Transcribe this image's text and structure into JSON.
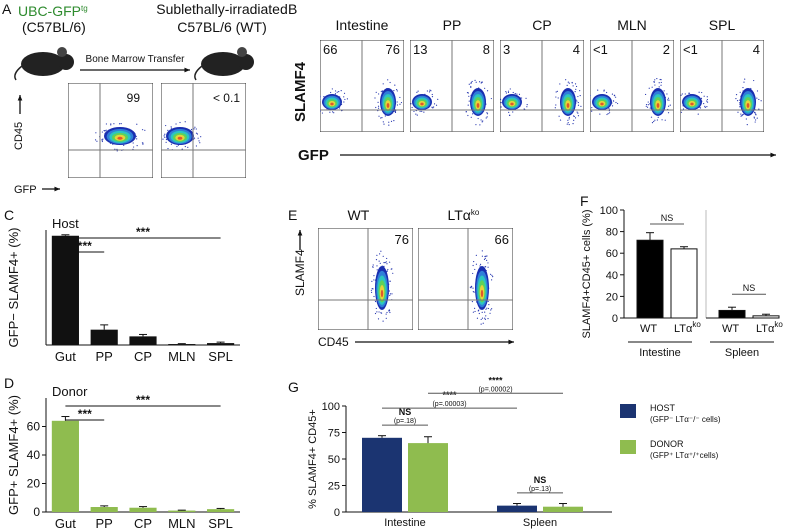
{
  "panels": {
    "a": {
      "letter": "A",
      "donor": "UBC-GFP",
      "donor_sup": "tg",
      "donor_strain": "(C57BL/6)",
      "recipient_line1": "Sublethally-irradiated",
      "recipient_line2": "C57BL/6 (WT)",
      "arrow_label": "Bone Marrow Transfer",
      "y_label": "CD45",
      "x_label": "GFP",
      "plots": [
        {
          "value": 99
        },
        {
          "value": "< 0.1"
        }
      ]
    },
    "b": {
      "letter": "B",
      "y_label": "SLAMF4",
      "x_label": "GFP",
      "plots": [
        {
          "title": "Intestine",
          "left": 66,
          "right": 76
        },
        {
          "title": "PP",
          "left": 13,
          "right": 8
        },
        {
          "title": "CP",
          "left": 3,
          "right": 4
        },
        {
          "title": "MLN",
          "left": "<1",
          "right": 2
        },
        {
          "title": "SPL",
          "left": "<1",
          "right": 4
        }
      ]
    },
    "e": {
      "letter": "E",
      "y_label": "SLAMF4",
      "x_label": "CD45",
      "plots": [
        {
          "title": "WT",
          "title_sup": "",
          "value": 76
        },
        {
          "title": "LTα",
          "title_sup": "ko",
          "value": 66
        }
      ]
    }
  },
  "chart_data": [
    {
      "type": "bar",
      "letter": "C",
      "label": "Host",
      "y_label": "GFP− SLAMF4+ (%)",
      "categories": [
        "Gut",
        "PP",
        "CP",
        "MLN",
        "SPL"
      ],
      "values": [
        57,
        8,
        4.5,
        0.5,
        1
      ],
      "errors": [
        0.5,
        2.5,
        1,
        0.2,
        0.5
      ],
      "color": "#111111",
      "ylim": [
        0,
        60
      ],
      "annotations": [
        "***",
        "***"
      ]
    },
    {
      "type": "bar",
      "letter": "D",
      "label": "Donor",
      "y_label": "GFP+ SLAMF4+ (%)",
      "categories": [
        "Gut",
        "PP",
        "CP",
        "MLN",
        "SPL"
      ],
      "values": [
        64,
        3.5,
        3,
        1,
        2
      ],
      "errors": [
        3,
        0.8,
        0.8,
        0.3,
        0.5
      ],
      "color": "#8fbc4f",
      "ylim": [
        0,
        80
      ],
      "yticks": [
        0,
        20,
        40,
        60
      ],
      "annotations": [
        "***",
        "***"
      ]
    },
    {
      "type": "split_bar",
      "letter": "F",
      "y_label": "SLAMF4+CD45+ cells (%)",
      "categories": [
        "WT",
        "LTα"
      ],
      "category_sup": [
        "",
        "ko"
      ],
      "bar_colors": [
        "#000000",
        "#ffffff"
      ],
      "ylim": [
        0,
        100
      ],
      "yticks": [
        0,
        20,
        40,
        60,
        80,
        100
      ],
      "groups": [
        {
          "name": "Intestine",
          "values": [
            72,
            64
          ],
          "errors": [
            7,
            2
          ],
          "annotation": "NS"
        },
        {
          "name": "Spleen",
          "values": [
            7,
            2
          ],
          "errors": [
            3,
            1.5
          ],
          "annotation": "NS"
        }
      ]
    },
    {
      "type": "grouped_bar",
      "letter": "G",
      "y_label": "% SLAMF4+ CD45+",
      "categories": [
        "Intestine",
        "Spleen"
      ],
      "ylim": [
        0,
        100
      ],
      "yticks": [
        0,
        25,
        50,
        75,
        100
      ],
      "series": [
        {
          "name": "HOST",
          "detail": "(GFP⁻ LTα⁻/⁻ cells)",
          "color": "#1b3471",
          "values": [
            70,
            6
          ],
          "errors": [
            2,
            2
          ]
        },
        {
          "name": "DONOR",
          "detail": "(GFP⁺ LTα⁺/⁺cells)",
          "color": "#8fbc4f",
          "values": [
            65,
            5
          ],
          "errors": [
            6,
            3
          ]
        }
      ],
      "annotations": [
        {
          "label": "NS",
          "p": "(p=.18)"
        },
        {
          "label": "NS",
          "p": "(p=.13)"
        },
        {
          "label": "****",
          "p": "(p=.00003)"
        },
        {
          "label": "****",
          "p": "(p=.00002)"
        }
      ]
    }
  ]
}
